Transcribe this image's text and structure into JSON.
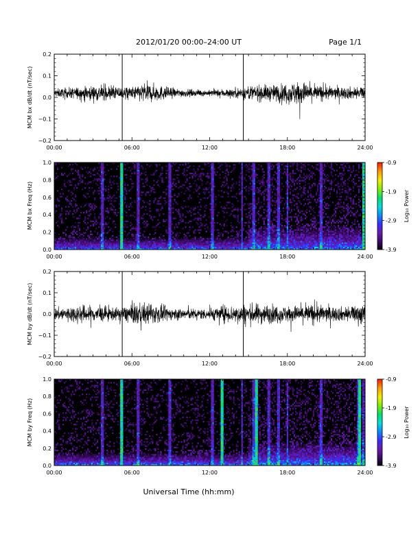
{
  "header": {
    "title": "2012/01/20  00:00–24:00 UT",
    "page_label": "Page 1/1"
  },
  "x_axis": {
    "tick_labels": [
      "00:00",
      "06:00",
      "12:00",
      "18:00",
      "24:00"
    ],
    "xlabel": "Universal Time (hh:mm)"
  },
  "colorbar": {
    "label": "Log₁₀ Power",
    "tick_labels": [
      "-0.9",
      "-1.9",
      "-2.9",
      "-3.9"
    ],
    "range": [
      -3.9,
      -0.9
    ],
    "colors": [
      "#000000",
      "#3b0a6a",
      "#6a1bb0",
      "#3a2cff",
      "#0a8cff",
      "#00e0d8",
      "#00e070",
      "#7ff000",
      "#f0f000",
      "#ffa000",
      "#ff2000"
    ]
  },
  "chart_data": [
    {
      "type": "line",
      "ylabel": "MCM bx dB/dt (nT/sec)",
      "ylim": [
        -0.2,
        0.2
      ],
      "xlim": [
        "00:00",
        "24:00"
      ],
      "y_ticks": [
        "0.2",
        "0.1",
        "0.0",
        "−0.1",
        "−0.2"
      ],
      "baseline": 0.02,
      "color": "#000000",
      "envelope": {
        "x_hours": [
          0,
          2,
          3.5,
          5,
          6,
          7,
          8,
          9,
          10,
          11,
          12,
          13,
          14,
          15,
          16,
          17,
          18,
          19,
          20,
          21,
          22,
          23,
          24
        ],
        "amplitude": [
          0.02,
          0.03,
          0.04,
          0.03,
          0.03,
          0.05,
          0.04,
          0.025,
          0.02,
          0.015,
          0.015,
          0.02,
          0.025,
          0.035,
          0.04,
          0.04,
          0.05,
          0.06,
          0.04,
          0.035,
          0.03,
          0.03,
          0.03
        ]
      },
      "spikes_hours": [
        5.25,
        14.6
      ],
      "spike_range": [
        -0.2,
        0.2
      ]
    },
    {
      "type": "heatmap",
      "ylabel": "MCM bx Freq (Hz)",
      "ylim": [
        0.0,
        1.0
      ],
      "xlim": [
        "00:00",
        "24:00"
      ],
      "y_ticks": [
        "1.0",
        "0.8",
        "0.6",
        "0.4",
        "0.2",
        "0.0"
      ],
      "value_range": [
        -3.9,
        -0.9
      ],
      "background_level": -3.9,
      "low_freq_level": -2.7,
      "vertical_streaks_hours": [
        3.7,
        5.2,
        6.5,
        8.9,
        12.2,
        14.5,
        15.4,
        16.6,
        17.3,
        18.0,
        20.6,
        23.9
      ],
      "strong_streaks_hours": [
        5.2,
        23.9
      ]
    },
    {
      "type": "line",
      "ylabel": "MCM by dB/dt (nT/sec)",
      "ylim": [
        -0.2,
        0.2
      ],
      "xlim": [
        "00:00",
        "24:00"
      ],
      "y_ticks": [
        "0.2",
        "0.1",
        "0.0",
        "−0.1",
        "−0.2"
      ],
      "baseline": 0.0,
      "color": "#000000",
      "envelope": {
        "x_hours": [
          0,
          2,
          3.5,
          5,
          6,
          7,
          8,
          9,
          10,
          11,
          12,
          13,
          14,
          15,
          16,
          17,
          18,
          19,
          20,
          21,
          22,
          23,
          24
        ],
        "amplitude": [
          0.03,
          0.045,
          0.04,
          0.03,
          0.05,
          0.055,
          0.045,
          0.03,
          0.03,
          0.025,
          0.03,
          0.04,
          0.045,
          0.05,
          0.05,
          0.045,
          0.04,
          0.045,
          0.05,
          0.04,
          0.035,
          0.04,
          0.06
        ]
      },
      "spikes_hours": [
        5.25,
        14.6
      ],
      "spike_range": [
        -0.2,
        0.2
      ]
    },
    {
      "type": "heatmap",
      "ylabel": "MCM by Freq (Hz)",
      "ylim": [
        0.0,
        1.0
      ],
      "xlim": [
        "00:00",
        "24:00"
      ],
      "y_ticks": [
        "1.0",
        "0.8",
        "0.6",
        "0.4",
        "0.2",
        "0.0"
      ],
      "value_range": [
        -3.9,
        -0.9
      ],
      "background_level": -3.9,
      "low_freq_level": -2.6,
      "vertical_streaks_hours": [
        3.7,
        5.2,
        6.5,
        8.9,
        12.2,
        14.5,
        15.4,
        16.6,
        17.3,
        18.0,
        20.6,
        23.5,
        23.9
      ],
      "strong_streaks_hours": [
        5.2,
        13.0,
        15.6,
        23.6
      ]
    }
  ]
}
